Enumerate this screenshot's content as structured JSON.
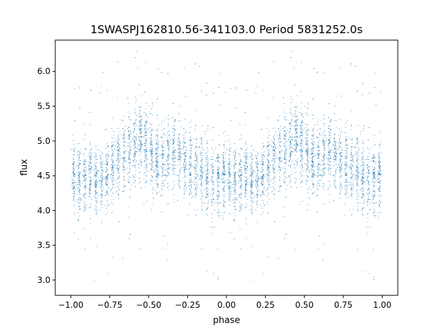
{
  "chart_data": {
    "type": "scatter",
    "title": "1SWASPJ162810.56-341103.0 Period 5831252.0s",
    "xlabel": "phase",
    "ylabel": "flux",
    "xlim": [
      -1.1,
      1.1
    ],
    "ylim": [
      2.78,
      6.45
    ],
    "xticks": [
      -1.0,
      -0.75,
      -0.5,
      -0.25,
      0.0,
      0.25,
      0.5,
      0.75,
      1.0
    ],
    "xtick_labels": [
      "−1.00",
      "−0.75",
      "−0.50",
      "−0.25",
      "0.00",
      "0.25",
      "0.50",
      "0.75",
      "1.00"
    ],
    "yticks": [
      3.0,
      3.5,
      4.0,
      4.5,
      5.0,
      5.5,
      6.0
    ],
    "ytick_labels": [
      "3.0",
      "3.5",
      "4.0",
      "4.5",
      "5.0",
      "5.5",
      "6.0"
    ],
    "grid": false,
    "marker_color": "#1f77b4",
    "phase_profile": {
      "x": [
        0.0,
        0.05,
        0.1,
        0.15,
        0.2,
        0.25,
        0.3,
        0.35,
        0.4,
        0.45,
        0.5,
        0.55,
        0.6,
        0.65,
        0.7,
        0.75,
        0.8,
        0.85,
        0.9,
        0.95,
        1.0
      ],
      "y_center": [
        4.48,
        4.45,
        4.5,
        4.42,
        4.4,
        4.6,
        4.75,
        4.8,
        4.9,
        5.05,
        4.9,
        4.7,
        4.75,
        4.85,
        4.8,
        4.65,
        4.6,
        4.55,
        4.45,
        4.45,
        4.48
      ],
      "y_spread": [
        0.25,
        0.25,
        0.25,
        0.22,
        0.22,
        0.25,
        0.25,
        0.28,
        0.3,
        0.32,
        0.3,
        0.25,
        0.25,
        0.25,
        0.25,
        0.25,
        0.25,
        0.25,
        0.25,
        0.25,
        0.25
      ]
    },
    "n_points_per_cycle": 3600
  }
}
